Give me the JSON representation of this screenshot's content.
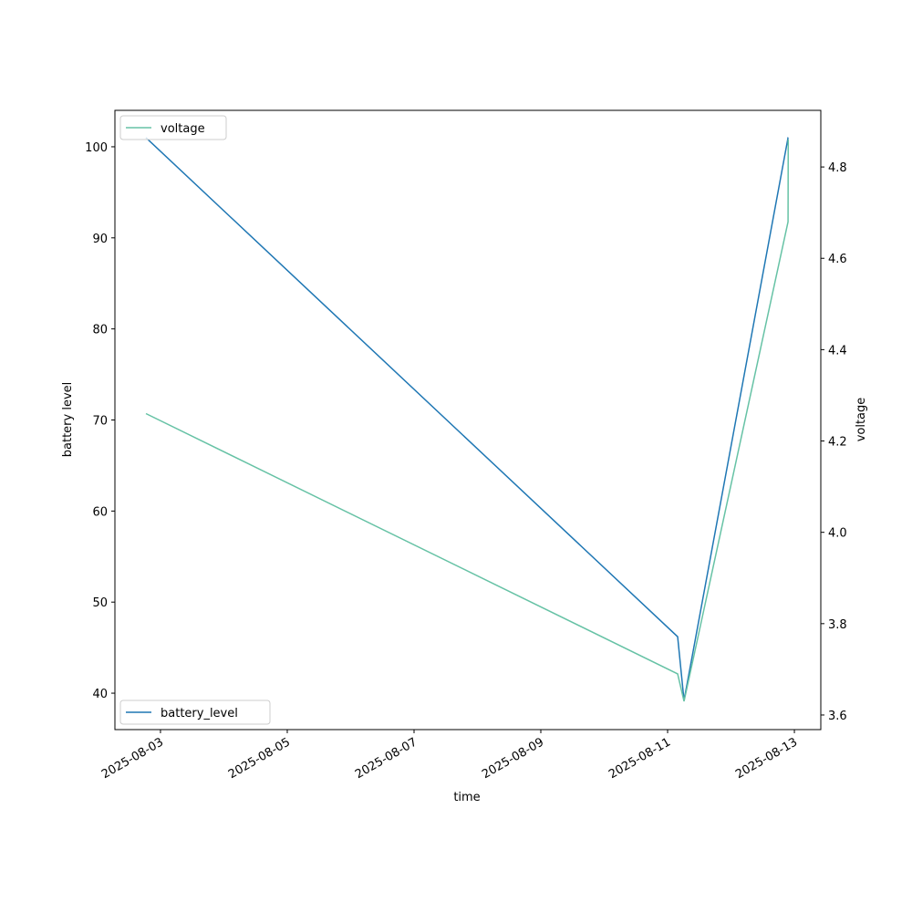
{
  "chart_data": {
    "type": "line",
    "x_label": "time",
    "y_label": "battery level",
    "y2_label": "voltage",
    "x": [
      "2025-08-02T18:30",
      "2025-08-11T03:48",
      "2025-08-11T06:13",
      "2025-08-12T21:36",
      "2025-08-12T21:40"
    ],
    "series": [
      {
        "name": "battery_level",
        "color": "#1f77b4",
        "values": [
          101,
          46.2,
          39.2,
          101,
          101
        ],
        "legend": "lower left"
      },
      {
        "name": "voltage",
        "color": "#66c2a5",
        "axis": "y2",
        "values": [
          4.26,
          3.69,
          3.63,
          4.68,
          4.86
        ],
        "legend": "upper left"
      }
    ],
    "xlim": [
      "2025-08-02T06:45",
      "2025-08-13T10:00"
    ],
    "xticks": [
      "2025-08-03",
      "2025-08-05",
      "2025-08-07",
      "2025-08-09",
      "2025-08-11",
      "2025-08-13"
    ],
    "ylim": [
      36,
      104
    ],
    "yticks": [
      40,
      50,
      60,
      70,
      80,
      90,
      100
    ],
    "y2lim": [
      3.568,
      4.924
    ],
    "y2ticks": [
      3.6,
      3.8,
      {
        "value": 4,
        "label": "4.0"
      },
      4.2,
      4.4,
      4.6,
      4.8
    ]
  }
}
